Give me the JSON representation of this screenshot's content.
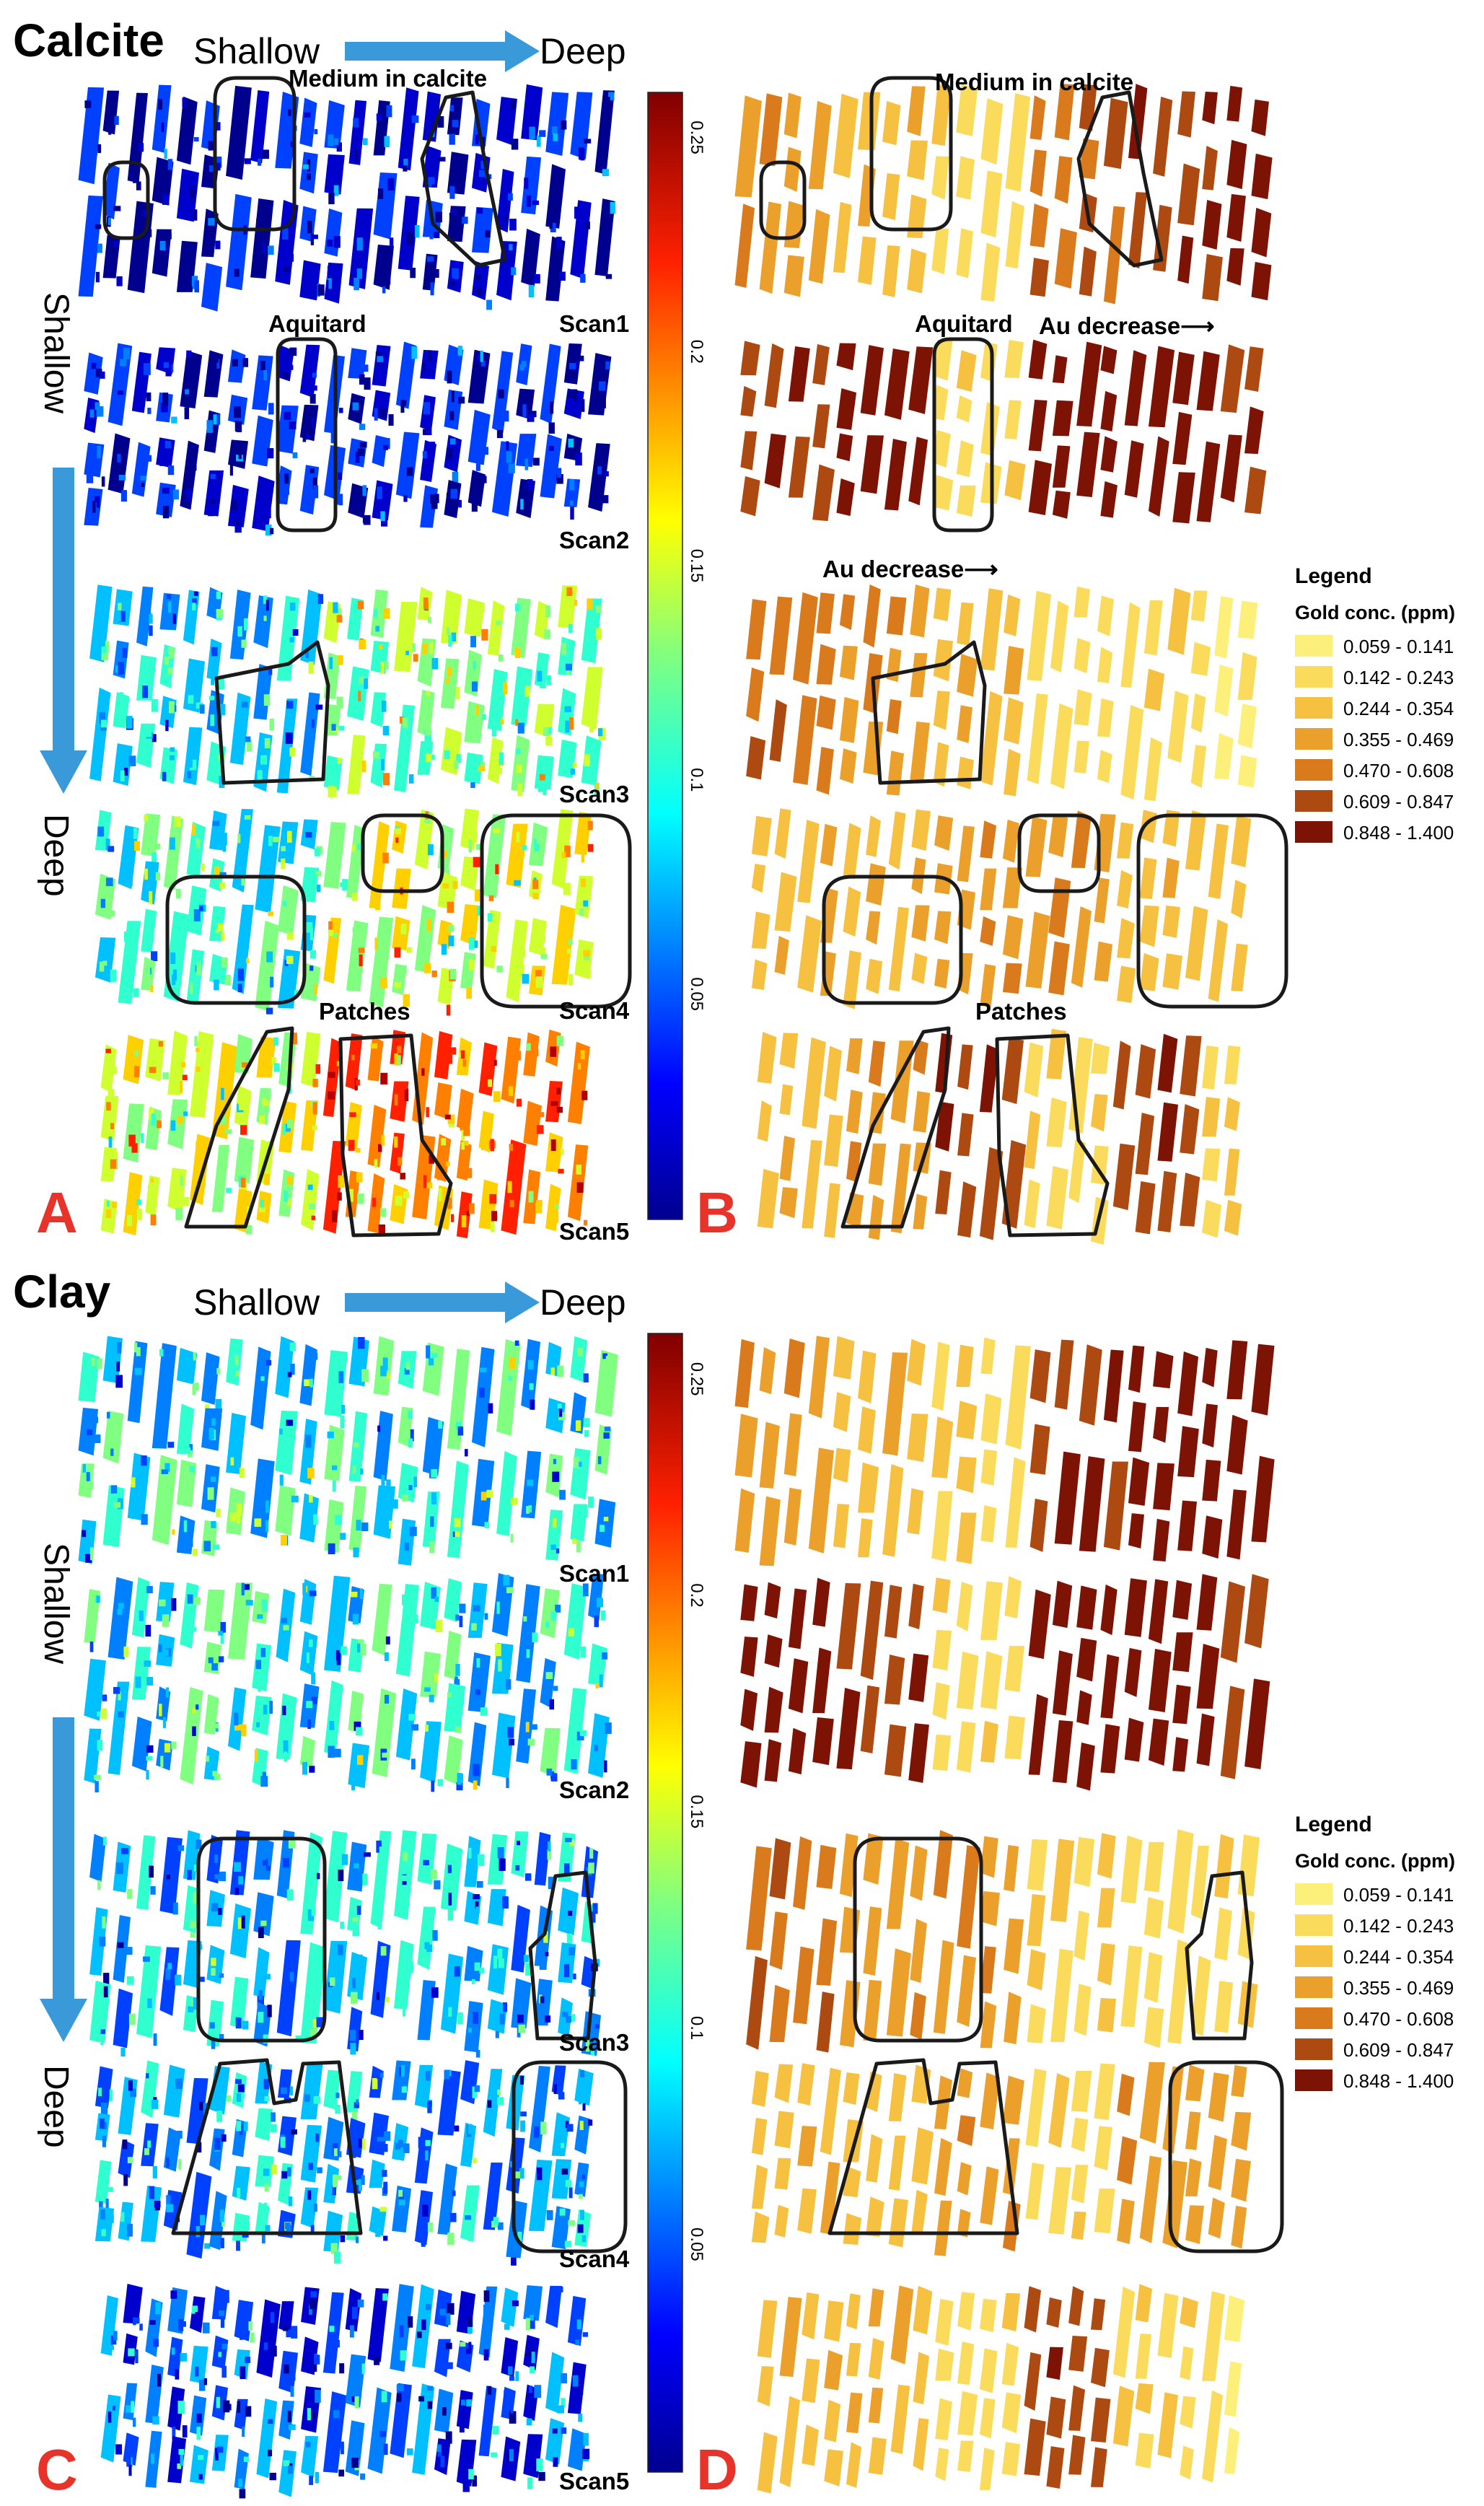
{
  "figure": {
    "sections": [
      {
        "id": "calcite",
        "title": "Calcite",
        "arrow_h_start": "Shallow",
        "arrow_h_end": "Deep",
        "arrow_v_start": "Shallow",
        "arrow_v_end": "Deep",
        "scans": [
          "Scan1",
          "Scan2",
          "Scan3",
          "Scan4",
          "Scan5"
        ],
        "annotations": {
          "medium_left": "Medium in calcite",
          "medium_right": "Medium in calcite",
          "aquitard_left": "Aquitard",
          "aquitard_right": "Aquitard",
          "au_decrease_1": "Au decrease⟶",
          "au_decrease_2": "Au decrease⟶",
          "patches_left": "Patches",
          "patches_right": "Patches"
        },
        "panel_left_letter": "A",
        "panel_right_letter": "B"
      },
      {
        "id": "clay",
        "title": "Clay",
        "arrow_h_start": "Shallow",
        "arrow_h_end": "Deep",
        "arrow_v_start": "Shallow",
        "arrow_v_end": "Deep",
        "scans": [
          "Scan1",
          "Scan2",
          "Scan3",
          "Scan4",
          "Scan5"
        ],
        "panel_left_letter": "C",
        "panel_right_letter": "D"
      }
    ],
    "colorbar": {
      "ticks": [
        "0.25",
        "0.2",
        "0.15",
        "0.1",
        "0.05"
      ],
      "colors": [
        "#00008f",
        "#0000ff",
        "#0080ff",
        "#00ffff",
        "#80ff80",
        "#ffff00",
        "#ff8000",
        "#ff0000",
        "#800000"
      ]
    },
    "legend": {
      "title": "Legend",
      "subtitle": "Gold conc. (ppm)",
      "classes": [
        {
          "label": "0.059 - 0.141",
          "color": "#fdf07a"
        },
        {
          "label": "0.142 - 0.243",
          "color": "#fadb5c"
        },
        {
          "label": "0.244 - 0.354",
          "color": "#f6c040"
        },
        {
          "label": "0.355 - 0.469",
          "color": "#eca02c"
        },
        {
          "label": "0.470 - 0.608",
          "color": "#d97b1d"
        },
        {
          "label": "0.609 - 0.847",
          "color": "#ad4a12"
        },
        {
          "label": "0.848 - 1.400",
          "color": "#7d1305"
        }
      ]
    },
    "colors": {
      "arrow": "#3a9ad9",
      "panel_letter": "#e8332a",
      "outline": "#1a1a1a"
    }
  }
}
